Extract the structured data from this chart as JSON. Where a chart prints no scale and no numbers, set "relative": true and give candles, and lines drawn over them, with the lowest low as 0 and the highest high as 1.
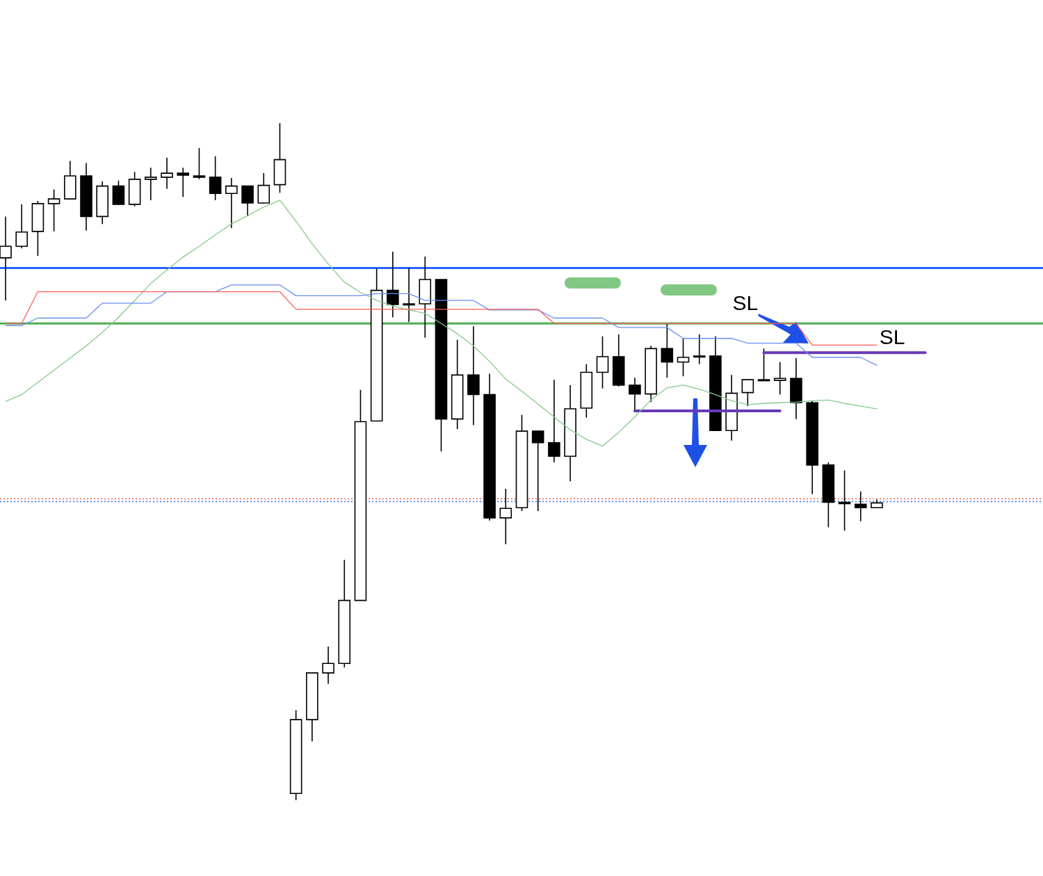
{
  "chart_data": {
    "type": "candlestick",
    "relative": true,
    "tick_labels": false,
    "color": "#000000",
    "categories": [
      null,
      null,
      null,
      null,
      null,
      null,
      null,
      null,
      null,
      null,
      null,
      null,
      null,
      null,
      null,
      null,
      null,
      null,
      null,
      null,
      null,
      null,
      null,
      null,
      null,
      null,
      null,
      null,
      null,
      null,
      null,
      null,
      null,
      null,
      null,
      null,
      null,
      null,
      null,
      null,
      null,
      null,
      null,
      null,
      null,
      null,
      null,
      null,
      null,
      null,
      null,
      null,
      null,
      null,
      null,
      null,
      null,
      null,
      null,
      null,
      null,
      null,
      null,
      null,
      null
    ],
    "ohlc": [
      [
        0.801,
        0.862,
        0.738,
        0.818
      ],
      [
        0.818,
        0.88,
        0.815,
        0.839
      ],
      [
        0.84,
        0.885,
        0.804,
        0.881
      ],
      [
        0.881,
        0.902,
        0.84,
        0.888
      ],
      [
        0.888,
        0.944,
        0.888,
        0.922
      ],
      [
        0.922,
        0.941,
        0.841,
        0.862
      ],
      [
        0.862,
        0.914,
        0.851,
        0.907
      ],
      [
        0.907,
        0.915,
        0.879,
        0.88
      ],
      [
        0.88,
        0.928,
        0.877,
        0.917
      ],
      [
        0.917,
        0.934,
        0.886,
        0.92
      ],
      [
        0.92,
        0.949,
        0.903,
        0.926
      ],
      [
        0.926,
        0.934,
        0.891,
        0.923
      ],
      [
        0.922,
        0.963,
        0.917,
        0.92
      ],
      [
        0.92,
        0.951,
        0.886,
        0.896
      ],
      [
        0.896,
        0.919,
        0.845,
        0.907
      ],
      [
        0.907,
        0.907,
        0.863,
        0.882
      ],
      [
        0.882,
        0.926,
        0.881,
        0.908
      ],
      [
        0.909,
        1,
        0.897,
        0.946
      ],
      [
        0.01,
        0.133,
        0,
        0.119
      ],
      [
        0.119,
        0.188,
        0.087,
        0.188
      ],
      [
        0.188,
        0.227,
        0.172,
        0.202
      ],
      [
        0.202,
        0.355,
        0.196,
        0.295
      ],
      [
        0.295,
        0.606,
        0.295,
        0.559
      ],
      [
        0.56,
        0.785,
        0.56,
        0.753
      ],
      [
        0.753,
        0.81,
        0.713,
        0.732
      ],
      [
        0.733,
        0.786,
        0.706,
        0.733
      ],
      [
        0.733,
        0.803,
        0.683,
        0.769
      ],
      [
        0.769,
        0.769,
        0.515,
        0.563
      ],
      [
        0.563,
        0.68,
        0.548,
        0.628
      ],
      [
        0.628,
        0.7,
        0.554,
        0.599
      ],
      [
        0.599,
        0.63,
        0.413,
        0.417
      ],
      [
        0.417,
        0.46,
        0.378,
        0.431
      ],
      [
        0.432,
        0.569,
        0.427,
        0.545
      ],
      [
        0.545,
        0.545,
        0.427,
        0.528
      ],
      [
        0.528,
        0.621,
        0.499,
        0.508
      ],
      [
        0.508,
        0.613,
        0.471,
        0.578
      ],
      [
        0.579,
        0.644,
        0.565,
        0.632
      ],
      [
        0.632,
        0.685,
        0.608,
        0.655
      ],
      [
        0.655,
        0.688,
        0.611,
        0.613
      ],
      [
        0.613,
        0.624,
        0.575,
        0.6
      ],
      [
        0.6,
        0.671,
        0.588,
        0.667
      ],
      [
        0.667,
        0.703,
        0.624,
        0.647
      ],
      [
        0.647,
        0.682,
        0.626,
        0.654
      ],
      [
        0.656,
        0.688,
        0.644,
        0.656
      ],
      [
        0.656,
        0.685,
        0.546,
        0.546
      ],
      [
        0.546,
        0.628,
        0.531,
        0.601
      ],
      [
        0.602,
        0.621,
        0.582,
        0.621
      ],
      [
        0.621,
        0.667,
        0.621,
        0.621
      ],
      [
        0.62,
        0.647,
        0.599,
        0.623
      ],
      [
        0.623,
        0.653,
        0.563,
        0.587
      ],
      [
        0.587,
        0.59,
        0.452,
        0.495
      ],
      [
        0.495,
        0.499,
        0.403,
        0.44
      ],
      [
        0.44,
        0.487,
        0.398,
        0.438
      ],
      [
        0.437,
        0.456,
        0.412,
        0.432
      ],
      [
        0.432,
        0.444,
        0.432,
        0.439
      ],
      null,
      null,
      null,
      null,
      null,
      null,
      null,
      null,
      null,
      null
    ],
    "series": [
      {
        "type": "line",
        "color": "#ff5a5a",
        "values": [
          0.704,
          0.704,
          0.751,
          0.751,
          0.751,
          0.751,
          0.751,
          0.751,
          0.751,
          0.751,
          0.751,
          0.751,
          0.751,
          0.751,
          0.751,
          0.751,
          0.751,
          0.751,
          0.725,
          0.725,
          0.725,
          0.725,
          0.725,
          0.725,
          0.725,
          0.725,
          0.725,
          0.725,
          0.725,
          0.725,
          0.725,
          0.725,
          0.725,
          0.725,
          0.704,
          0.704,
          0.704,
          0.704,
          0.704,
          0.704,
          0.704,
          0.704,
          0.704,
          0.704,
          0.704,
          0.704,
          0.704,
          0.704,
          0.704,
          0.704,
          0.672,
          0.672,
          0.672,
          0.672,
          0.672,
          null,
          null,
          null,
          null,
          null,
          null,
          null,
          null,
          null,
          null
        ]
      },
      {
        "type": "line",
        "color": "#6a8ef5",
        "values": [
          0.701,
          0.701,
          0.712,
          0.712,
          0.712,
          0.712,
          0.734,
          0.734,
          0.734,
          0.734,
          0.751,
          0.751,
          0.751,
          0.751,
          0.761,
          0.761,
          0.761,
          0.761,
          0.745,
          0.745,
          0.745,
          0.745,
          0.745,
          0.748,
          0.748,
          0.748,
          0.738,
          0.738,
          0.738,
          0.738,
          0.724,
          0.724,
          0.724,
          0.724,
          0.712,
          0.712,
          0.712,
          0.712,
          0.698,
          0.698,
          0.698,
          0.698,
          0.682,
          0.682,
          0.682,
          0.682,
          0.675,
          0.675,
          0.675,
          0.675,
          0.654,
          0.654,
          0.654,
          0.654,
          0.642,
          null,
          null,
          null,
          null,
          null,
          null,
          null,
          null,
          null,
          null
        ]
      },
      {
        "type": "line",
        "color": "#85c98a",
        "values": [
          0.589,
          0.599,
          0.617,
          0.635,
          0.653,
          0.671,
          0.691,
          0.713,
          0.738,
          0.763,
          0.783,
          0.802,
          0.818,
          0.835,
          0.851,
          0.863,
          0.876,
          0.886,
          0.855,
          0.822,
          0.792,
          0.765,
          0.75,
          0.738,
          0.73,
          0.724,
          0.719,
          0.704,
          0.689,
          0.671,
          0.648,
          0.622,
          0.604,
          0.585,
          0.566,
          0.547,
          0.533,
          0.523,
          0.543,
          0.566,
          0.591,
          0.609,
          0.613,
          0.607,
          0.599,
          0.59,
          0.584,
          0.586,
          0.587,
          0.588,
          0.59,
          0.591,
          0.586,
          0.582,
          0.578,
          null,
          null,
          null,
          null,
          null,
          null,
          null,
          null,
          null,
          null
        ]
      },
      {
        "type": "line",
        "color": "#673ab7",
        "values": [
          null,
          null,
          null,
          null,
          null,
          null,
          null,
          null,
          null,
          null,
          null,
          null,
          null,
          null,
          null,
          null,
          null,
          null,
          null,
          null,
          null,
          null,
          null,
          null,
          null,
          null,
          null,
          null,
          null,
          null,
          null,
          null,
          null,
          null,
          null,
          null,
          null,
          null,
          null,
          0.575,
          0.575,
          0.575,
          0.575,
          0.575,
          0.575,
          0.575,
          0.575,
          0.575,
          0.575,
          null,
          null,
          null,
          null,
          null,
          null,
          null,
          null,
          null,
          null,
          null,
          null,
          null,
          null,
          null,
          null
        ]
      },
      {
        "type": "line",
        "color": "#673ab7",
        "values": [
          null,
          null,
          null,
          null,
          null,
          null,
          null,
          null,
          null,
          null,
          null,
          null,
          null,
          null,
          null,
          null,
          null,
          null,
          null,
          null,
          null,
          null,
          null,
          null,
          null,
          null,
          null,
          null,
          null,
          null,
          null,
          null,
          null,
          null,
          null,
          null,
          null,
          null,
          null,
          null,
          null,
          null,
          null,
          null,
          null,
          null,
          null,
          0.661,
          0.661,
          0.661,
          0.661,
          0.661,
          0.661,
          0.661,
          0.661,
          0.661,
          0.661,
          0.661,
          null,
          null,
          null,
          null,
          null,
          null,
          null
        ]
      }
    ],
    "ref_lines": [
      {
        "axis": "y",
        "value": 0.786,
        "color": "#2962ff",
        "line_style": "solid"
      },
      {
        "axis": "y",
        "value": 0.704,
        "color": "#4caf50",
        "line_style": "solid"
      },
      {
        "axis": "y",
        "value": 0.445,
        "color": "#ff5a5a",
        "line_style": "dotted"
      },
      {
        "axis": "y",
        "value": 0.441,
        "color": "#2962ff",
        "line_style": "dotted"
      }
    ],
    "annotations": [
      "SL",
      "SL"
    ]
  }
}
